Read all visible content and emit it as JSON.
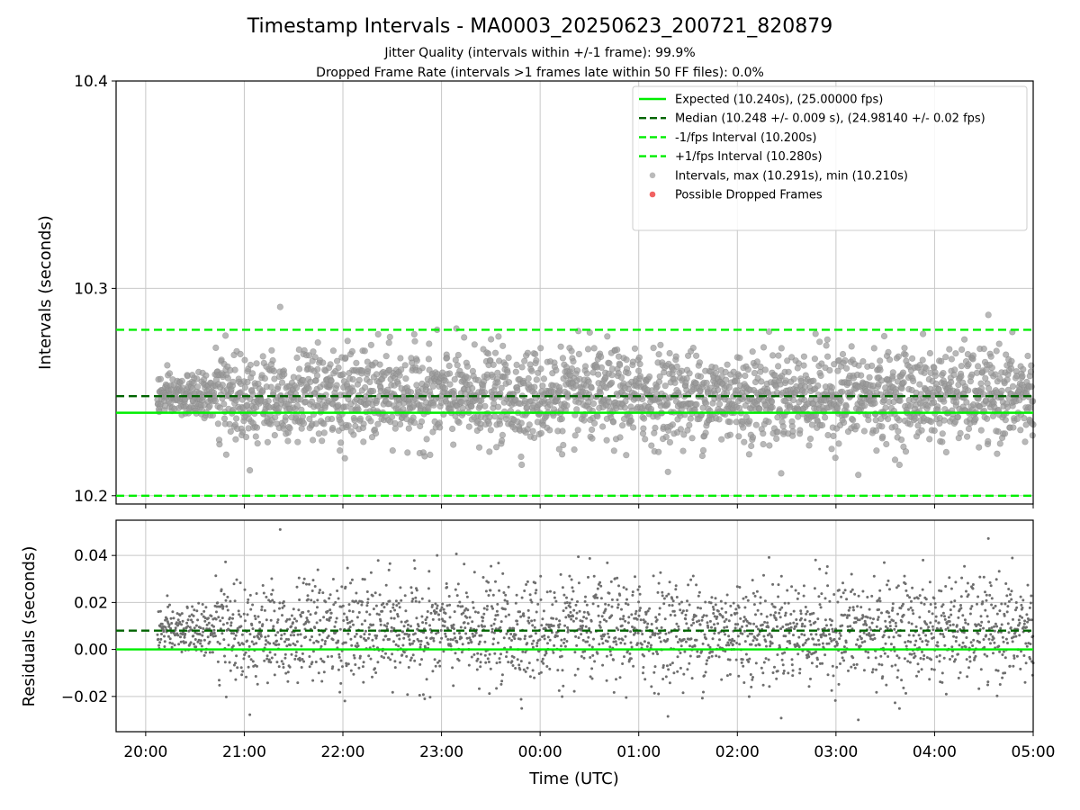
{
  "chart_data": {
    "title": "Timestamp Intervals - MA0003_20250623_200721_820879",
    "subtitles": [
      "Jitter Quality (intervals within +/-1 frame): 99.9%",
      "Dropped Frame Rate (intervals >1 frames late within 50 FF files): 0.0%"
    ],
    "xlabel": "Time (UTC)",
    "x_tick_labels": [
      "20:00",
      "21:00",
      "22:00",
      "23:00",
      "00:00",
      "01:00",
      "02:00",
      "03:00",
      "04:00",
      "05:00"
    ],
    "x_range_hours": [
      19.7,
      29.0
    ],
    "data_start_hour": 20.12,
    "data_end_hour": 29.0,
    "grid": true,
    "colors": {
      "expected": "#00ee00",
      "median": "#006400",
      "fps_bounds": "#00ee00",
      "intervals": "#808080",
      "dropped": "#ee3b3b",
      "grid": "#c8c8c8"
    },
    "top_panel": {
      "type": "scatter",
      "ylabel": "Intervals (seconds)",
      "ylim": [
        10.196,
        10.4
      ],
      "y_ticks": [
        10.2,
        10.3,
        10.4
      ],
      "y_tick_labels": [
        "10.2",
        "10.3",
        "10.4"
      ],
      "expected": 10.24,
      "median": 10.248,
      "lower_bound": 10.2,
      "upper_bound": 10.28,
      "max": 10.291,
      "min": 10.21,
      "point_count": 2600,
      "legend_position": "upper-right",
      "legend": [
        {
          "label": "Expected (10.240s), (25.00000 fps)",
          "style": "solid-line",
          "color": "#00ee00"
        },
        {
          "label": "Median (10.248 +/- 0.009 s), (24.98140 +/- 0.02 fps)",
          "style": "dashed-line",
          "color": "#006400"
        },
        {
          "label": "-1/fps Interval (10.200s)",
          "style": "dashed-line",
          "color": "#00ee00"
        },
        {
          "label": "+1/fps Interval (10.280s)",
          "style": "dashed-line",
          "color": "#00ee00"
        },
        {
          "label": "Intervals, max (10.291s), min (10.210s)",
          "style": "marker",
          "color": "#a9a9a9"
        },
        {
          "label": "Possible Dropped Frames",
          "style": "marker",
          "color": "#ee3b3b"
        }
      ]
    },
    "bottom_panel": {
      "type": "scatter",
      "ylabel": "Residuals (seconds)",
      "ylim": [
        -0.035,
        0.055
      ],
      "y_ticks": [
        -0.02,
        0.0,
        0.02,
        0.04
      ],
      "y_tick_labels": [
        "−0.02",
        "0.00",
        "0.02",
        "0.04"
      ],
      "zero_line": 0.0,
      "median_residual": 0.008,
      "max": 0.051,
      "min": -0.03,
      "point_count": 2600
    }
  }
}
